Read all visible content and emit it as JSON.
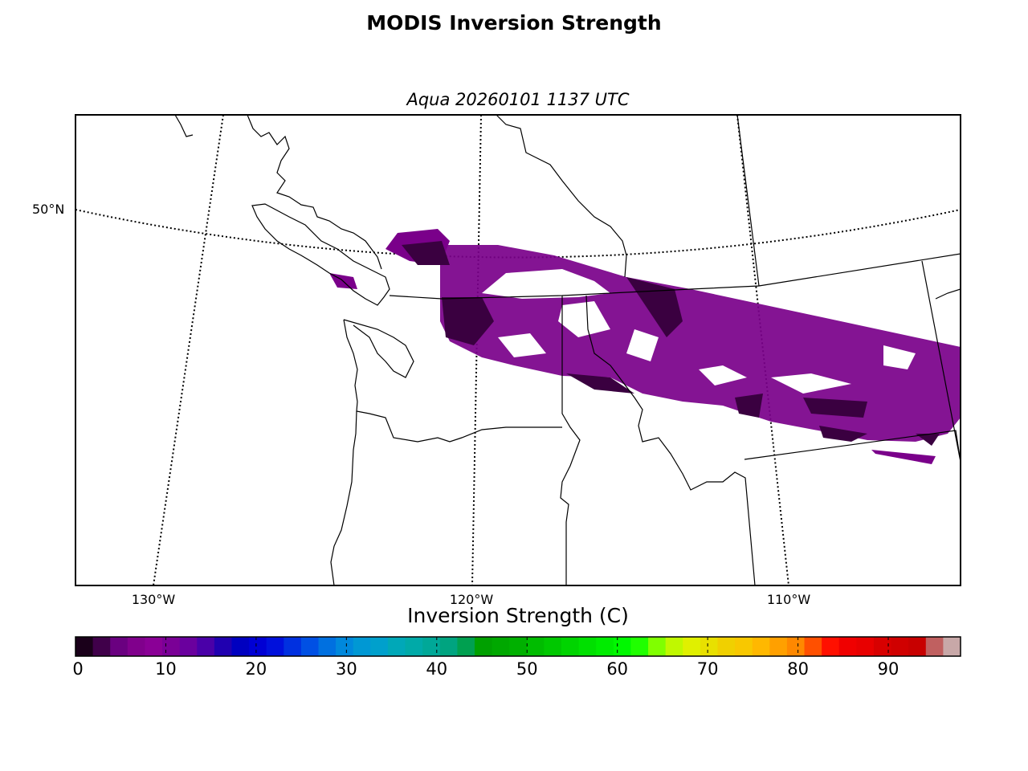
{
  "title": "MODIS Inversion Strength",
  "subtitle": "Aqua 20260101 1137 UTC",
  "map": {
    "region": "Pacific Northwest (Washington / British Columbia / Idaho / Montana)",
    "parallels": [
      {
        "label": "50°N"
      }
    ],
    "meridians": [
      {
        "label": "130°W"
      },
      {
        "label": "120°W"
      },
      {
        "label": "110°W"
      }
    ],
    "data_color": "#7a008a",
    "data_color_dark": "#3a0040"
  },
  "colorbar": {
    "title": "Inversion Strength (C)",
    "min": 0,
    "max": 98,
    "tick_labels": [
      "0",
      "10",
      "20",
      "30",
      "40",
      "50",
      "60",
      "70",
      "80",
      "90"
    ],
    "colors": [
      "#1a001a",
      "#40004a",
      "#6a0080",
      "#80008c",
      "#8a0096",
      "#7a0096",
      "#6a009e",
      "#4a00a8",
      "#2000b0",
      "#0000c0",
      "#0000d4",
      "#0010dc",
      "#0030e0",
      "#0050e4",
      "#0070e0",
      "#0088dc",
      "#0098d4",
      "#00a0cc",
      "#00a8b8",
      "#00aaa8",
      "#00a898",
      "#00a480",
      "#00a050",
      "#00a000",
      "#00a800",
      "#00b000",
      "#00bc00",
      "#00c800",
      "#00d400",
      "#00e000",
      "#00ec00",
      "#00f800",
      "#20ff00",
      "#80ff00",
      "#c0f800",
      "#e0f000",
      "#e8e000",
      "#f0d000",
      "#f8c800",
      "#ffb800",
      "#ffa000",
      "#ff8800",
      "#ff5000",
      "#ff1000",
      "#f00000",
      "#e80000",
      "#d80000",
      "#d00000",
      "#c80000",
      "#c06060",
      "#c8a8a8"
    ]
  }
}
